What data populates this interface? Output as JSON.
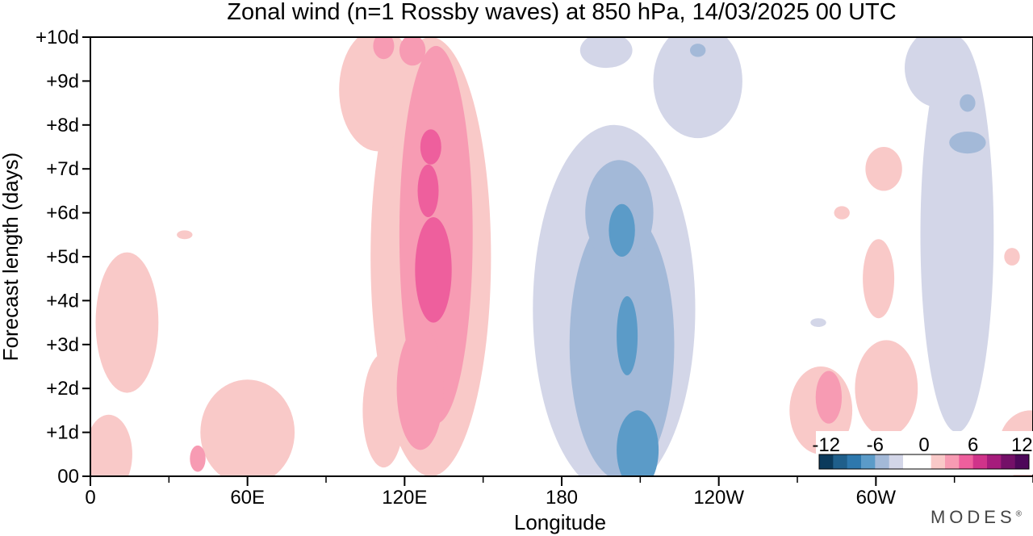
{
  "chart_data": {
    "type": "heatmap",
    "title": "Zonal wind (n=1 Rossby waves) at 850 hPa,  14/03/2025  00 UTC",
    "xlabel": "Longitude",
    "ylabel": "Forecast length (days)",
    "x_ticks": [
      {
        "lon": 0,
        "label": "0"
      },
      {
        "lon": 60,
        "label": "60E"
      },
      {
        "lon": 120,
        "label": "120E"
      },
      {
        "lon": 180,
        "label": "180"
      },
      {
        "lon": 240,
        "label": "120W"
      },
      {
        "lon": 300,
        "label": "60W"
      }
    ],
    "x_minor_step": 30,
    "xlim": [
      0,
      360
    ],
    "y_ticks": [
      {
        "day": 0,
        "label": "00"
      },
      {
        "day": 1,
        "label": "+1d"
      },
      {
        "day": 2,
        "label": "+2d"
      },
      {
        "day": 3,
        "label": "+3d"
      },
      {
        "day": 4,
        "label": "+4d"
      },
      {
        "day": 5,
        "label": "+5d"
      },
      {
        "day": 6,
        "label": "+6d"
      },
      {
        "day": 7,
        "label": "+7d"
      },
      {
        "day": 8,
        "label": "+8d"
      },
      {
        "day": 9,
        "label": "+9d"
      },
      {
        "day": 10,
        "label": "+10d"
      }
    ],
    "ylim": [
      0,
      10
    ],
    "colorbar": {
      "labels": [
        "-12",
        "-6",
        "0",
        "6",
        "12"
      ],
      "colors": [
        "#0b3a5c",
        "#1f5f8b",
        "#2e78ad",
        "#5b9bc8",
        "#a3b9d8",
        "#d3d6e8",
        "#ffffff",
        "#ffffff",
        "#f9c9c8",
        "#f79bb3",
        "#ee5f9d",
        "#d0338a",
        "#a61c7c",
        "#741068",
        "#4d0859"
      ]
    },
    "levels": [
      {
        "level": 1,
        "color": "#f9c9c8",
        "blobs": [
          {
            "lon": 130,
            "day": 5.0,
            "rlon": 23,
            "rday": 5.0
          },
          {
            "lon": 110,
            "day": 8.8,
            "rlon": 15,
            "rday": 1.4
          },
          {
            "lon": 14,
            "day": 3.5,
            "rlon": 12,
            "rday": 1.6
          },
          {
            "lon": 7,
            "day": 0.5,
            "rlon": 9,
            "rday": 0.9
          },
          {
            "lon": 60,
            "day": 1.0,
            "rlon": 18,
            "rday": 1.2
          },
          {
            "lon": 112,
            "day": 1.5,
            "rlon": 8,
            "rday": 1.3
          },
          {
            "lon": 304,
            "day": 2.0,
            "rlon": 12,
            "rday": 1.1
          },
          {
            "lon": 279,
            "day": 1.5,
            "rlon": 12,
            "rday": 1.0
          },
          {
            "lon": 301,
            "day": 4.5,
            "rlon": 6,
            "rday": 0.9
          },
          {
            "lon": 359,
            "day": 0.7,
            "rlon": 12,
            "rday": 0.8
          },
          {
            "lon": 303,
            "day": 7.0,
            "rlon": 7,
            "rday": 0.5
          },
          {
            "lon": 287,
            "day": 6.0,
            "rlon": 3,
            "rday": 0.15
          },
          {
            "lon": 36,
            "day": 5.5,
            "rlon": 3,
            "rday": 0.1
          },
          {
            "lon": 352,
            "day": 5.0,
            "rlon": 3,
            "rday": 0.2
          }
        ]
      },
      {
        "level": 2,
        "color": "#f79bb3",
        "blobs": [
          {
            "lon": 132,
            "day": 5.5,
            "rlon": 14,
            "rday": 4.3
          },
          {
            "lon": 126,
            "day": 2.0,
            "rlon": 9,
            "rday": 1.4
          },
          {
            "lon": 123,
            "day": 9.7,
            "rlon": 5,
            "rday": 0.35
          },
          {
            "lon": 112,
            "day": 9.8,
            "rlon": 4,
            "rday": 0.3
          },
          {
            "lon": 282,
            "day": 1.8,
            "rlon": 5,
            "rday": 0.6
          },
          {
            "lon": 41,
            "day": 0.4,
            "rlon": 3,
            "rday": 0.3
          }
        ]
      },
      {
        "level": 3,
        "color": "#ee5f9d",
        "blobs": [
          {
            "lon": 131,
            "day": 4.7,
            "rlon": 7,
            "rday": 1.2
          },
          {
            "lon": 129,
            "day": 6.5,
            "rlon": 4,
            "rday": 0.6
          },
          {
            "lon": 130,
            "day": 7.5,
            "rlon": 4,
            "rday": 0.4
          }
        ]
      },
      {
        "level": -1,
        "color": "#d3d6e8",
        "blobs": [
          {
            "lon": 200,
            "day": 3.8,
            "rlon": 31,
            "rday": 4.2
          },
          {
            "lon": 232,
            "day": 9.0,
            "rlon": 17,
            "rday": 1.3
          },
          {
            "lon": 331,
            "day": 5.5,
            "rlon": 14,
            "rday": 4.5
          },
          {
            "lon": 324,
            "day": 9.3,
            "rlon": 13,
            "rday": 0.9
          },
          {
            "lon": 197,
            "day": 9.7,
            "rlon": 10,
            "rday": 0.4
          },
          {
            "lon": 278,
            "day": 3.5,
            "rlon": 3,
            "rday": 0.1
          }
        ]
      },
      {
        "level": -2,
        "color": "#a3b9d8",
        "blobs": [
          {
            "lon": 203,
            "day": 3.0,
            "rlon": 20,
            "rday": 3.1
          },
          {
            "lon": 202,
            "day": 6.0,
            "rlon": 13,
            "rday": 1.2
          },
          {
            "lon": 335,
            "day": 7.6,
            "rlon": 7,
            "rday": 0.25
          },
          {
            "lon": 335,
            "day": 8.5,
            "rlon": 3,
            "rday": 0.2
          },
          {
            "lon": 232,
            "day": 9.7,
            "rlon": 3,
            "rday": 0.15
          }
        ]
      },
      {
        "level": -3,
        "color": "#5b9bc8",
        "blobs": [
          {
            "lon": 209,
            "day": 0.6,
            "rlon": 8,
            "rday": 0.9
          },
          {
            "lon": 205,
            "day": 3.2,
            "rlon": 4,
            "rday": 0.9
          },
          {
            "lon": 203,
            "day": 5.6,
            "rlon": 5,
            "rday": 0.6
          }
        ]
      }
    ]
  },
  "brand": "MODES"
}
